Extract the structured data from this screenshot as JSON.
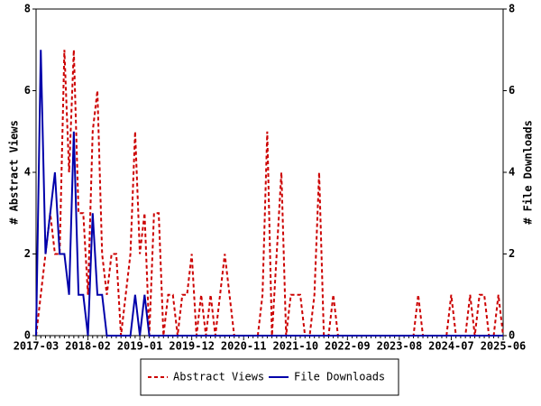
{
  "chart_data": {
    "type": "line",
    "y_label": "# Abstract Views",
    "y2_label": "# File Downloads",
    "categories": [
      "2017-03",
      null,
      null,
      null,
      null,
      null,
      null,
      null,
      null,
      null,
      null,
      "2018-02",
      null,
      null,
      null,
      null,
      null,
      null,
      null,
      null,
      null,
      null,
      "2019-01",
      null,
      null,
      null,
      null,
      null,
      null,
      null,
      null,
      null,
      null,
      "2019-12",
      null,
      null,
      null,
      null,
      null,
      null,
      null,
      null,
      null,
      null,
      "2020-11",
      null,
      null,
      null,
      null,
      null,
      null,
      null,
      null,
      null,
      null,
      "2021-10",
      null,
      null,
      null,
      null,
      null,
      null,
      null,
      null,
      null,
      null,
      "2022-09",
      null,
      null,
      null,
      null,
      null,
      null,
      null,
      null,
      null,
      null,
      "2023-08",
      null,
      null,
      null,
      null,
      null,
      null,
      null,
      null,
      null,
      null,
      "2024-07",
      null,
      null,
      null,
      null,
      null,
      null,
      null,
      null,
      null,
      null,
      "2025-06"
    ],
    "series": [
      {
        "name": "Abstract Views",
        "color": "#cc0000",
        "dashed": true,
        "values": [
          0,
          1,
          2,
          3,
          2,
          2,
          7,
          4,
          7,
          3,
          3,
          1,
          5,
          6,
          2,
          1,
          2,
          2,
          0,
          1,
          2,
          5,
          2,
          3,
          0,
          3,
          3,
          0,
          1,
          1,
          0,
          1,
          1,
          2,
          0,
          1,
          0,
          1,
          0,
          1,
          2,
          1,
          0,
          0,
          0,
          0,
          0,
          0,
          1,
          5,
          0,
          2,
          4,
          0,
          1,
          1,
          1,
          0,
          0,
          1,
          4,
          0,
          0,
          1,
          0,
          0,
          0,
          0,
          0,
          0,
          0,
          0,
          0,
          0,
          0,
          0,
          0,
          0,
          0,
          0,
          0,
          1,
          0,
          0,
          0,
          0,
          0,
          0,
          1,
          0,
          0,
          0,
          1,
          0,
          1,
          1,
          0,
          0,
          1,
          0
        ]
      },
      {
        "name": "File Downloads",
        "color": "#0000aa",
        "dashed": false,
        "axis": "y2",
        "values": [
          0,
          7,
          2,
          3,
          4,
          2,
          2,
          1,
          5,
          1,
          1,
          0,
          3,
          1,
          1,
          0,
          0,
          0,
          0,
          0,
          0,
          1,
          0,
          1,
          0,
          0,
          0,
          0,
          0,
          0,
          0,
          0,
          0,
          0,
          0,
          0,
          0,
          0,
          0,
          0,
          0,
          0,
          0,
          0,
          0,
          0,
          0,
          0,
          0,
          0,
          0,
          0,
          0,
          0,
          0,
          0,
          0,
          0,
          0,
          0,
          0,
          0,
          0,
          0,
          0,
          0,
          0,
          0,
          0,
          0,
          0,
          0,
          0,
          0,
          0,
          0,
          0,
          0,
          0,
          0,
          0,
          0,
          0,
          0,
          0,
          0,
          0,
          0,
          0,
          0,
          0,
          0,
          0,
          0,
          0,
          0,
          0,
          0,
          0,
          0
        ]
      }
    ],
    "ylim": [
      0,
      8
    ],
    "yticks": [
      0,
      2,
      4,
      6,
      8
    ],
    "y2lim": [
      0,
      8
    ],
    "y2ticks": [
      0,
      2,
      4,
      6,
      8
    ],
    "legend": "bottom"
  }
}
